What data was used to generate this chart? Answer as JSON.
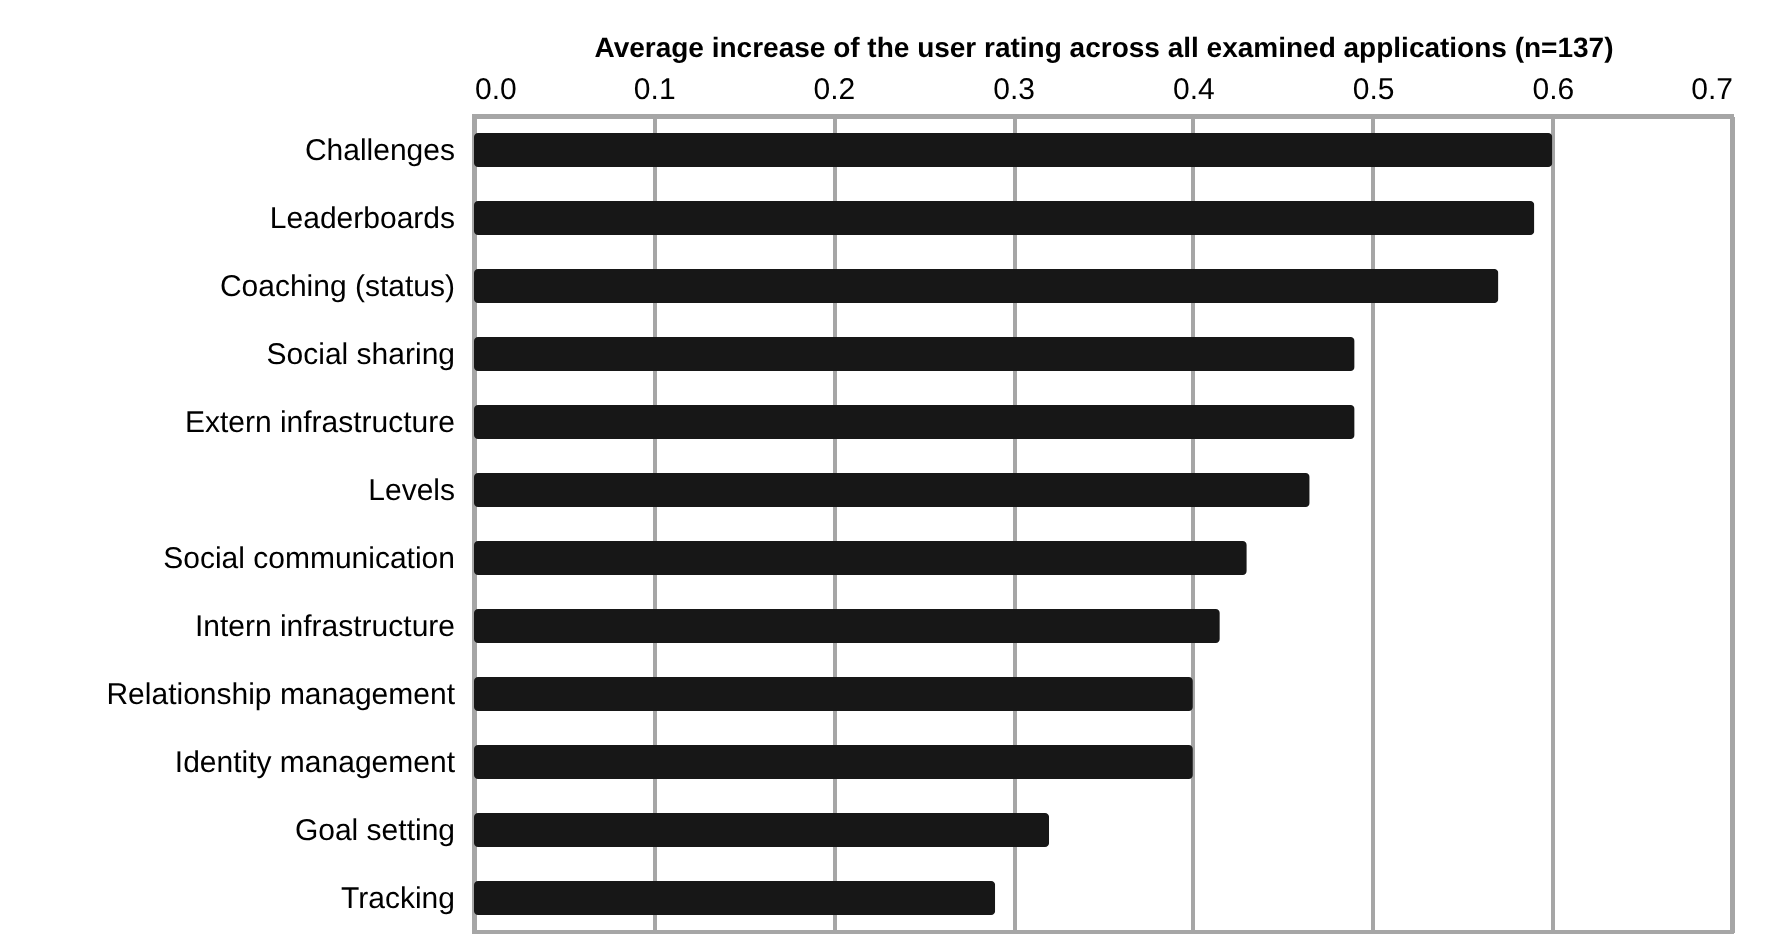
{
  "chart_data": {
    "type": "bar",
    "orientation": "horizontal",
    "xlabel": "Average increase of the user rating across all examined applications (n=137)",
    "categories": [
      "Challenges",
      "Leaderboards",
      "Coaching (status)",
      "Social sharing",
      "Extern infrastructure",
      "Levels",
      "Social communication",
      "Intern infrastructure",
      "Relationship management",
      "Identity management",
      "Goal setting",
      "Tracking"
    ],
    "values": [
      0.6,
      0.59,
      0.57,
      0.49,
      0.49,
      0.465,
      0.43,
      0.415,
      0.4,
      0.4,
      0.32,
      0.29
    ],
    "color": "#171717",
    "xlim": [
      0,
      0.7
    ],
    "xticks": [
      {
        "value": 0,
        "label": "0.0"
      },
      {
        "value": 0.1,
        "label": "0.1"
      },
      {
        "value": 0.2,
        "label": "0.2"
      },
      {
        "value": 0.3,
        "label": "0.3"
      },
      {
        "value": 0.4,
        "label": "0.4"
      },
      {
        "value": 0.5,
        "label": "0.5"
      },
      {
        "value": 0.6,
        "label": "0.6"
      },
      {
        "value": 0.7,
        "label": "0.7"
      }
    ],
    "grid": "x"
  }
}
